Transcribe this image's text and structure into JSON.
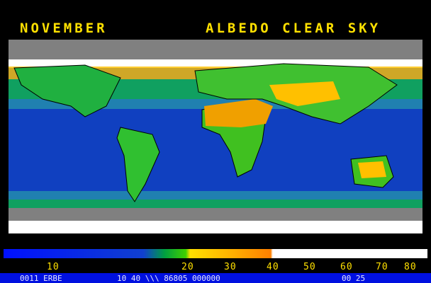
{
  "header": {
    "month": "NOVEMBER",
    "title": "ALBEDO CLEAR SKY"
  },
  "colorbar": {
    "labels": [
      "10",
      "20",
      "30",
      "40",
      "50",
      "60",
      "70",
      "80"
    ]
  },
  "footer": {
    "left": "0011 ERBE",
    "middle": "10 40 \\\\\\ 86805 000000",
    "right": "00 25"
  }
}
